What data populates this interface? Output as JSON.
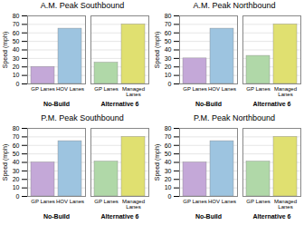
{
  "chart_data": [
    {
      "type": "bar",
      "title": "A.M. Peak Southbound",
      "categories": [
        "GP Lanes",
        "HOV Lanes",
        "GP Lanes",
        "Managed\nLanes"
      ],
      "category_groups": [
        "No-Build",
        "No-Build",
        "Alternative 6",
        "Alternative 6"
      ],
      "values": [
        20,
        65,
        25,
        70
      ],
      "colors": [
        "#c4a8d8",
        "#9dc4e0",
        "#b0d8a8",
        "#e0e070"
      ],
      "ylabel": "Speed (mph)",
      "ylim": [
        0,
        80
      ],
      "yticks": [
        0,
        10,
        20,
        30,
        40,
        50,
        60,
        70,
        80
      ],
      "grid": true
    },
    {
      "type": "bar",
      "title": "A.M. Peak Northbound",
      "categories": [
        "GP Lanes",
        "HOV Lanes",
        "GP Lanes",
        "Managed\nLanes"
      ],
      "category_groups": [
        "No-Build",
        "No-Build",
        "Alternative 6",
        "Alternative 6"
      ],
      "values": [
        30,
        65,
        33,
        70
      ],
      "colors": [
        "#c4a8d8",
        "#9dc4e0",
        "#b0d8a8",
        "#e0e070"
      ],
      "ylabel": "Speed (mph)",
      "ylim": [
        0,
        80
      ],
      "yticks": [
        0,
        10,
        20,
        30,
        40,
        50,
        60,
        70,
        80
      ],
      "grid": true
    },
    {
      "type": "bar",
      "title": "P.M. Peak Southbound",
      "categories": [
        "GP Lanes",
        "HOV Lanes",
        "GP Lanes",
        "Managed\nLanes"
      ],
      "category_groups": [
        "No-Build",
        "No-Build",
        "Alternative 6",
        "Alternative 6"
      ],
      "values": [
        40,
        65,
        41,
        70
      ],
      "colors": [
        "#c4a8d8",
        "#9dc4e0",
        "#b0d8a8",
        "#e0e070"
      ],
      "ylabel": "Speed (mph)",
      "ylim": [
        0,
        80
      ],
      "yticks": [
        0,
        10,
        20,
        30,
        40,
        50,
        60,
        70,
        80
      ],
      "grid": true
    },
    {
      "type": "bar",
      "title": "P.M. Peak Northbound",
      "categories": [
        "GP Lanes",
        "HOV Lanes",
        "GP Lanes",
        "Managed\nLanes"
      ],
      "category_groups": [
        "No-Build",
        "No-Build",
        "Alternative 6",
        "Alternative 6"
      ],
      "values": [
        40,
        65,
        41,
        70
      ],
      "colors": [
        "#c4a8d8",
        "#9dc4e0",
        "#b0d8a8",
        "#e0e070"
      ],
      "ylabel": "Speed (mph)",
      "ylim": [
        0,
        80
      ],
      "yticks": [
        0,
        10,
        20,
        30,
        40,
        50,
        60,
        70,
        80
      ],
      "grid": true
    }
  ]
}
